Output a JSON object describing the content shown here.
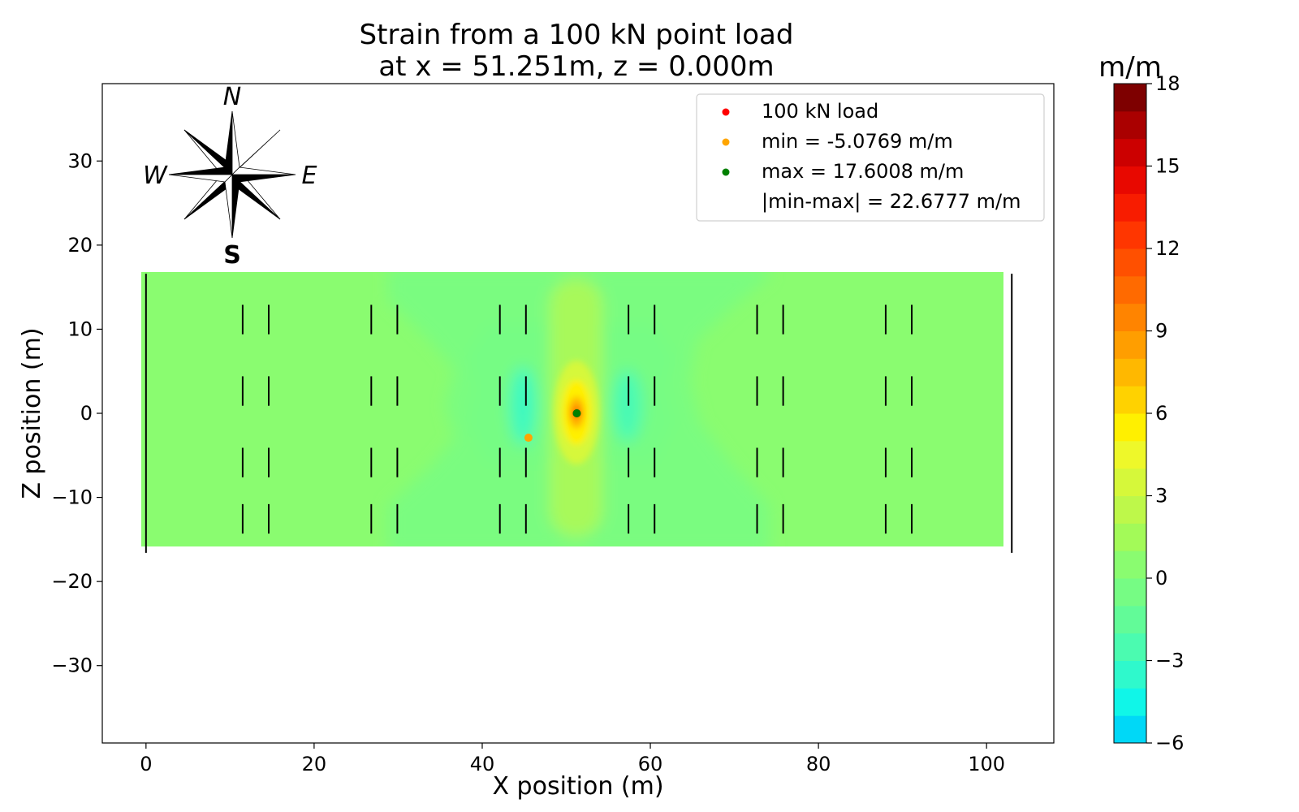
{
  "chart_data": {
    "type": "heatmap",
    "title_line1": "Strain from a 100 kN point load",
    "title_line2": "at x = 51.251m, z = 0.000m",
    "xlabel": "X position (m)",
    "ylabel": "Z position (m)",
    "xlim": [
      -5.2,
      108.0
    ],
    "ylim": [
      -39.2,
      39.2
    ],
    "x_ticks": [
      "0",
      "20",
      "40",
      "60",
      "80",
      "100"
    ],
    "x_tick_values": [
      0,
      20,
      40,
      60,
      80,
      100
    ],
    "y_ticks": [
      "30",
      "20",
      "10",
      "0",
      "−10",
      "−20",
      "−30"
    ],
    "y_tick_values": [
      30,
      20,
      10,
      0,
      -10,
      -20,
      -30
    ],
    "domain": {
      "x": [
        0,
        103
      ],
      "z": [
        -16.3,
        16.3
      ]
    },
    "load_point": {
      "x": 51.251,
      "z": 0.0
    },
    "min_point": {
      "x": 45.5,
      "z": -2.9,
      "value": -5.0769
    },
    "max_point": {
      "x": 51.251,
      "z": 0.0,
      "value": 17.6008
    },
    "legend": [
      {
        "label": "100 kN load",
        "color": "#ff0000"
      },
      {
        "label": "min = -5.0769 m/m",
        "color": "#ffa500"
      },
      {
        "label": "max = 17.6008 m/m",
        "color": "#008000"
      },
      {
        "label": "|min-max| = 22.6777 m/m",
        "color": ""
      }
    ],
    "legend_position": "top-right",
    "colorbar": {
      "label": "m/m",
      "range": [
        -6,
        18
      ],
      "ticks": [
        "18",
        "15",
        "12",
        "9",
        "6",
        "3",
        "0",
        "−3",
        "−6"
      ],
      "tick_values": [
        18,
        15,
        12,
        9,
        6,
        3,
        0,
        -3,
        -6
      ],
      "levels": [
        -6,
        -5,
        -4,
        -3,
        -2,
        -1,
        0,
        1,
        2,
        3,
        4,
        5,
        6,
        7,
        8,
        9,
        10,
        11,
        12,
        13,
        14,
        15,
        16,
        17,
        18
      ],
      "colors": [
        "#00d8f7",
        "#10f6e8",
        "#2ff9cc",
        "#4bfbb0",
        "#62fb98",
        "#76fc84",
        "#8afc70",
        "#a3fa58",
        "#bef84a",
        "#d6f83a",
        "#eef82a",
        "#fff000",
        "#ffd200",
        "#ffb800",
        "#ff9e00",
        "#ff8400",
        "#ff6a00",
        "#ff5000",
        "#ff3600",
        "#f81c00",
        "#e80800",
        "#cc0000",
        "#aa0000",
        "#7e0000"
      ]
    },
    "sleepers_x": [
      11.5,
      14.6,
      26.8,
      29.9,
      42.1,
      45.2,
      57.4,
      60.5,
      72.7,
      75.8,
      88.0,
      91.1
    ],
    "sleeper_rows_z": [
      [
        12.9,
        9.4
      ],
      [
        4.4,
        0.9
      ],
      [
        -4.1,
        -7.6
      ],
      [
        -10.8,
        -14.3
      ]
    ],
    "compass": {
      "north": "N",
      "south": "S",
      "east": "E",
      "west": "W"
    }
  }
}
